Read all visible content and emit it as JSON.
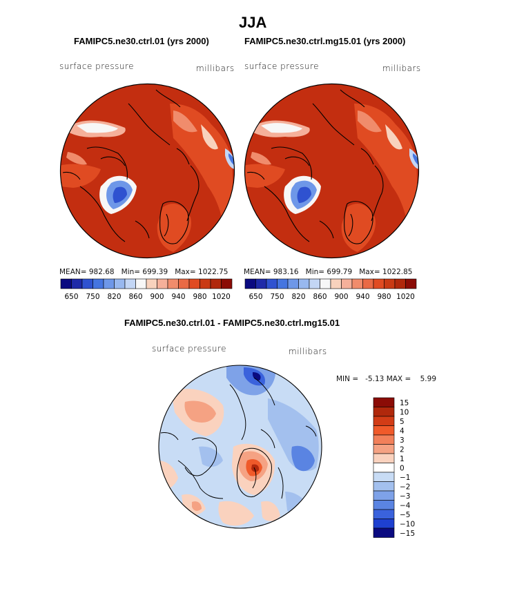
{
  "figure": {
    "title": "JJA"
  },
  "panels": [
    {
      "title": "FAMIPC5.ne30.ctrl.01 (yrs 2000)",
      "variable": "surface pressure",
      "units": "millibars",
      "stats": {
        "mean_label": "MEAN=",
        "mean": "982.68",
        "min_label": "Min=",
        "min": "699.39",
        "max_label": "Max=",
        "max": "1022.75"
      }
    },
    {
      "title": "FAMIPC5.ne30.ctrl.mg15.01 (yrs 2000)",
      "variable": "surface pressure",
      "units": "millibars",
      "stats": {
        "mean_label": "MEAN=",
        "mean": "983.16",
        "min_label": "Min=",
        "min": "699.79",
        "max_label": "Max=",
        "max": "1022.85"
      }
    }
  ],
  "colorbar_top": {
    "colors": [
      "#0a0a80",
      "#1e2aa8",
      "#2f52d0",
      "#4575e0",
      "#6e97e8",
      "#98b8ef",
      "#c3d6f5",
      "#f7f7f7",
      "#f8d2bd",
      "#f5b09a",
      "#f08c6c",
      "#e96a45",
      "#e04b22",
      "#c93a14",
      "#b0280c",
      "#8b0c06"
    ],
    "tick_labels": [
      "650",
      "750",
      "820",
      "860",
      "900",
      "940",
      "980",
      "1020"
    ]
  },
  "diff_panel": {
    "title": "FAMIPC5.ne30.ctrl.01 - FAMIPC5.ne30.ctrl.mg15.01",
    "variable": "surface pressure",
    "units": "millibars",
    "min_label": "MIN =",
    "min": "-5.13",
    "max_label": "MAX =",
    "max": "5.99"
  },
  "colorbar_diff": {
    "colors": [
      "#8b0c06",
      "#b0280c",
      "#d23c16",
      "#f05a2a",
      "#f2805a",
      "#f5a283",
      "#fad2be",
      "#ffffff",
      "#c8dcf5",
      "#a3c0ee",
      "#7ea2e8",
      "#5a84e2",
      "#3a62dc",
      "#1e40d0",
      "#0a0a80"
    ],
    "tick_labels": [
      "15",
      "10",
      "5",
      "4",
      "3",
      "2",
      "1",
      "0",
      "−1",
      "−2",
      "−3",
      "−4",
      "−5",
      "−10",
      "−15"
    ]
  }
}
